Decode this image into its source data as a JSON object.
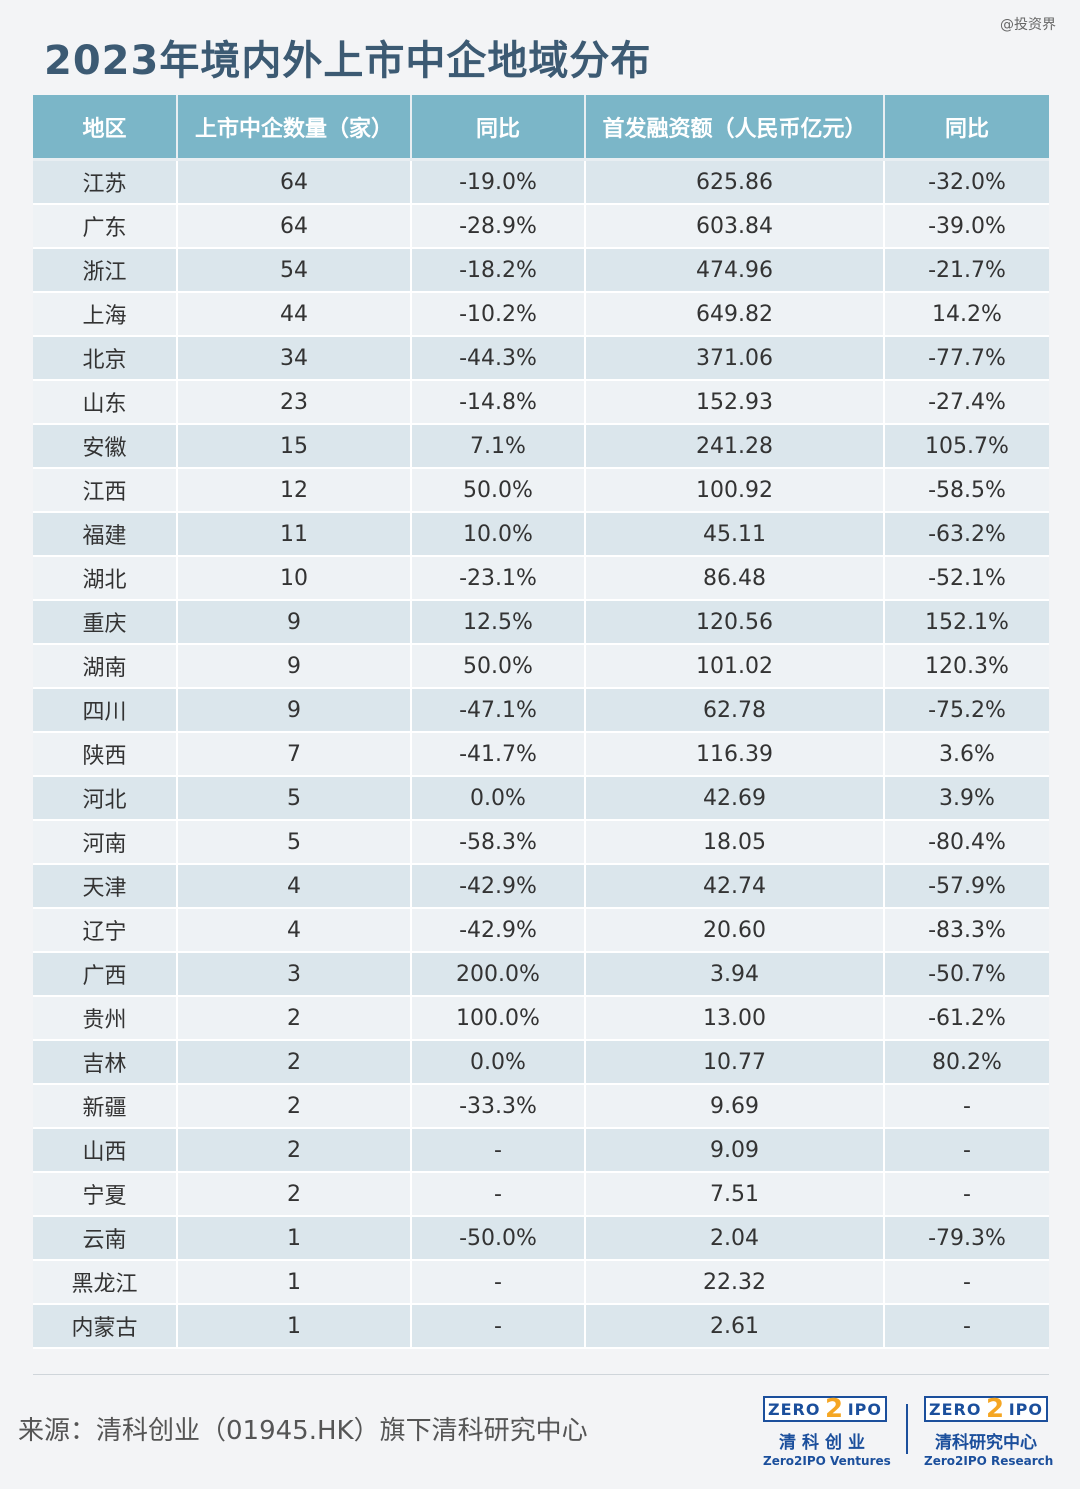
{
  "watermark": "@投资界",
  "chart_data": {
    "type": "table",
    "title": "2023年境内外上市中企地域分布",
    "columns": [
      "地区",
      "上市中企数量（家）",
      "同比",
      "首发融资额（人民币亿元）",
      "同比"
    ],
    "rows": [
      {
        "region": "江苏",
        "count": "64",
        "count_yoy": "-19.0%",
        "ipo_amount": "625.86",
        "amount_yoy": "-32.0%"
      },
      {
        "region": "广东",
        "count": "64",
        "count_yoy": "-28.9%",
        "ipo_amount": "603.84",
        "amount_yoy": "-39.0%"
      },
      {
        "region": "浙江",
        "count": "54",
        "count_yoy": "-18.2%",
        "ipo_amount": "474.96",
        "amount_yoy": "-21.7%"
      },
      {
        "region": "上海",
        "count": "44",
        "count_yoy": "-10.2%",
        "ipo_amount": "649.82",
        "amount_yoy": "14.2%"
      },
      {
        "region": "北京",
        "count": "34",
        "count_yoy": "-44.3%",
        "ipo_amount": "371.06",
        "amount_yoy": "-77.7%"
      },
      {
        "region": "山东",
        "count": "23",
        "count_yoy": "-14.8%",
        "ipo_amount": "152.93",
        "amount_yoy": "-27.4%"
      },
      {
        "region": "安徽",
        "count": "15",
        "count_yoy": "7.1%",
        "ipo_amount": "241.28",
        "amount_yoy": "105.7%"
      },
      {
        "region": "江西",
        "count": "12",
        "count_yoy": "50.0%",
        "ipo_amount": "100.92",
        "amount_yoy": "-58.5%"
      },
      {
        "region": "福建",
        "count": "11",
        "count_yoy": "10.0%",
        "ipo_amount": "45.11",
        "amount_yoy": "-63.2%"
      },
      {
        "region": "湖北",
        "count": "10",
        "count_yoy": "-23.1%",
        "ipo_amount": "86.48",
        "amount_yoy": "-52.1%"
      },
      {
        "region": "重庆",
        "count": "9",
        "count_yoy": "12.5%",
        "ipo_amount": "120.56",
        "amount_yoy": "152.1%"
      },
      {
        "region": "湖南",
        "count": "9",
        "count_yoy": "50.0%",
        "ipo_amount": "101.02",
        "amount_yoy": "120.3%"
      },
      {
        "region": "四川",
        "count": "9",
        "count_yoy": "-47.1%",
        "ipo_amount": "62.78",
        "amount_yoy": "-75.2%"
      },
      {
        "region": "陕西",
        "count": "7",
        "count_yoy": "-41.7%",
        "ipo_amount": "116.39",
        "amount_yoy": "3.6%"
      },
      {
        "region": "河北",
        "count": "5",
        "count_yoy": "0.0%",
        "ipo_amount": "42.69",
        "amount_yoy": "3.9%"
      },
      {
        "region": "河南",
        "count": "5",
        "count_yoy": "-58.3%",
        "ipo_amount": "18.05",
        "amount_yoy": "-80.4%"
      },
      {
        "region": "天津",
        "count": "4",
        "count_yoy": "-42.9%",
        "ipo_amount": "42.74",
        "amount_yoy": "-57.9%"
      },
      {
        "region": "辽宁",
        "count": "4",
        "count_yoy": "-42.9%",
        "ipo_amount": "20.60",
        "amount_yoy": "-83.3%"
      },
      {
        "region": "广西",
        "count": "3",
        "count_yoy": "200.0%",
        "ipo_amount": "3.94",
        "amount_yoy": "-50.7%"
      },
      {
        "region": "贵州",
        "count": "2",
        "count_yoy": "100.0%",
        "ipo_amount": "13.00",
        "amount_yoy": "-61.2%"
      },
      {
        "region": "吉林",
        "count": "2",
        "count_yoy": "0.0%",
        "ipo_amount": "10.77",
        "amount_yoy": "80.2%"
      },
      {
        "region": "新疆",
        "count": "2",
        "count_yoy": "-33.3%",
        "ipo_amount": "9.69",
        "amount_yoy": "-"
      },
      {
        "region": "山西",
        "count": "2",
        "count_yoy": "-",
        "ipo_amount": "9.09",
        "amount_yoy": "-"
      },
      {
        "region": "宁夏",
        "count": "2",
        "count_yoy": "-",
        "ipo_amount": "7.51",
        "amount_yoy": "-"
      },
      {
        "region": "云南",
        "count": "1",
        "count_yoy": "-50.0%",
        "ipo_amount": "2.04",
        "amount_yoy": "-79.3%"
      },
      {
        "region": "黑龙江",
        "count": "1",
        "count_yoy": "-",
        "ipo_amount": "22.32",
        "amount_yoy": "-"
      },
      {
        "region": "内蒙古",
        "count": "1",
        "count_yoy": "-",
        "ipo_amount": "2.61",
        "amount_yoy": "-"
      }
    ],
    "highlight_color": "#c0161c"
  },
  "source": "来源：清科创业（01945.HK）旗下清科研究中心",
  "logos": [
    {
      "zero": "ZERO",
      "two": "2",
      "ipo": "IPO",
      "cn": "清科创业",
      "en": "Zero2IPO Ventures"
    },
    {
      "zero": "ZERO",
      "two": "2",
      "ipo": "IPO",
      "cn": "清科研究中心",
      "en": "Zero2IPO Research"
    }
  ]
}
